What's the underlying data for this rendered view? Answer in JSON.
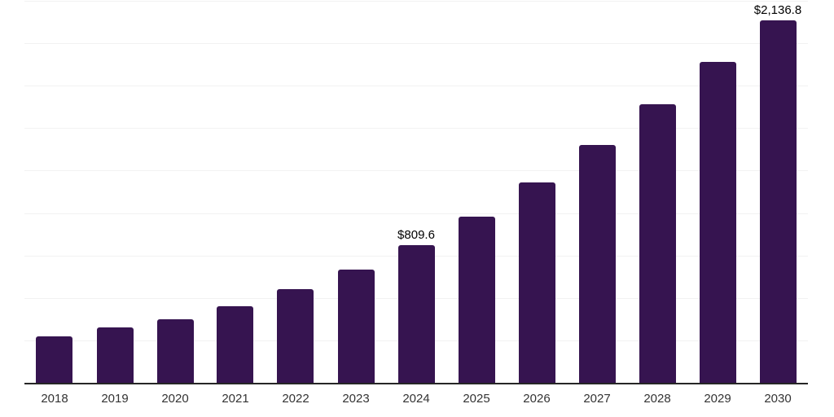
{
  "chart_data": {
    "type": "bar",
    "title": "",
    "xlabel": "",
    "ylabel": "",
    "categories": [
      "2018",
      "2019",
      "2020",
      "2021",
      "2022",
      "2023",
      "2024",
      "2025",
      "2026",
      "2027",
      "2028",
      "2029",
      "2030"
    ],
    "values": [
      273,
      326,
      374,
      450,
      552,
      666,
      809.6,
      977,
      1179,
      1399,
      1639,
      1888,
      2136.8
    ],
    "point_labels": [
      "",
      "",
      "",
      "",
      "",
      "",
      "$809.6",
      "",
      "",
      "",
      "",
      "",
      "$2,136.8"
    ],
    "ylim": [
      0,
      2250
    ],
    "grid": true,
    "grid_step": 250,
    "y_tick_labels_shown": false,
    "legend": "none",
    "bar_color": "#361450",
    "gridline_color": "#f2f2f2",
    "axis_line_color": "#262626",
    "tick_label_color": "#333333",
    "data_label_color": "#000000"
  }
}
